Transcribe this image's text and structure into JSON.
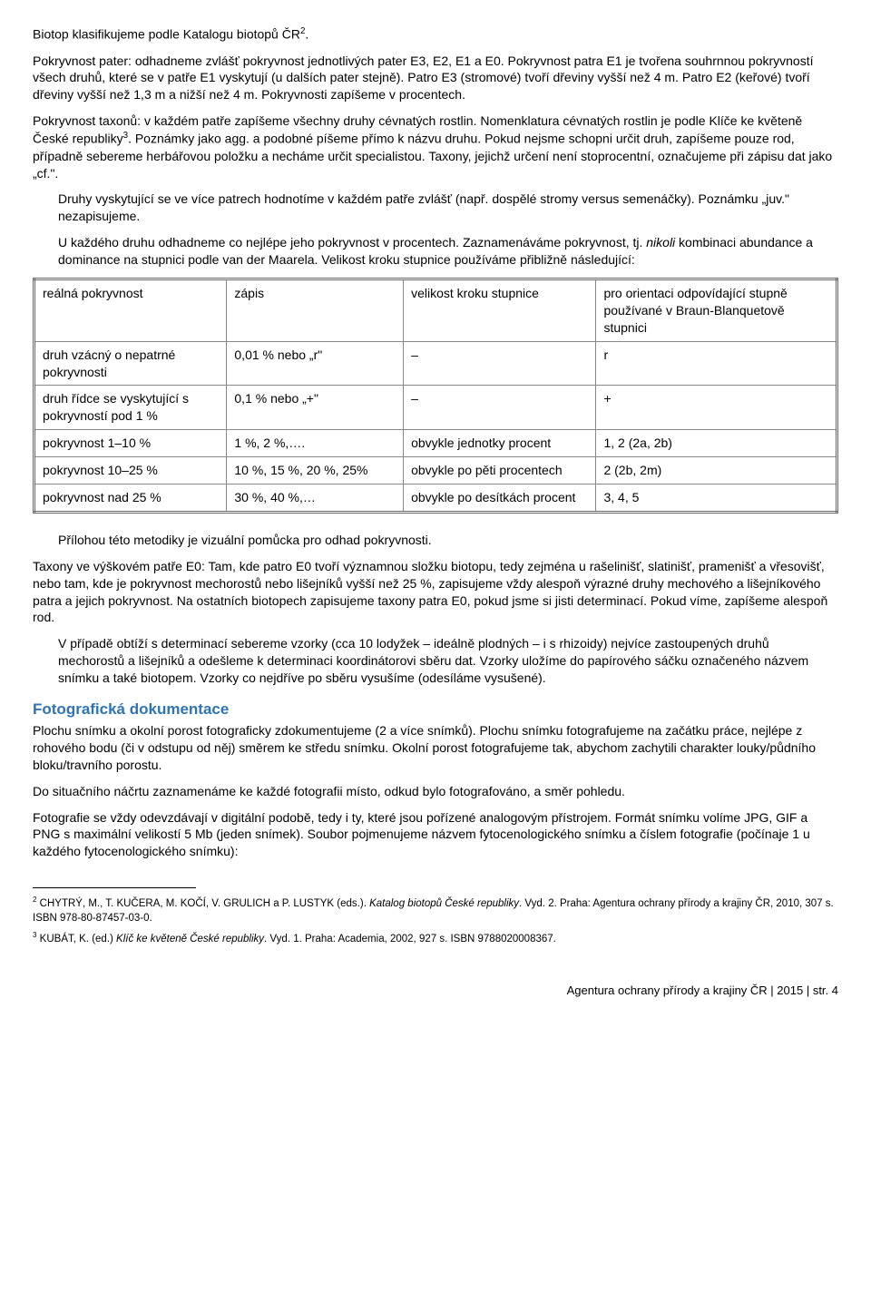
{
  "para1_a": "Biotop klasifikujeme podle Katalogu biotopů ČR",
  "para1_sup": "2",
  "para1_b": ".",
  "para2": "Pokryvnost pater: odhadneme zvlášť pokryvnost jednotlivých pater E3, E2, E1 a E0. Pokryvnost patra E1 je tvořena souhrnnou pokryvností všech druhů, které se v patře E1 vyskytují (u dalších pater stejně). Patro E3 (stromové) tvoří dřeviny vyšší než 4 m. Patro E2 (keřové) tvoří dřeviny vyšší než 1,3 m a nižší než 4 m. Pokryvnosti zapíšeme v procentech.",
  "para3_a": "Pokryvnost taxonů: v každém patře zapíšeme všechny druhy cévnatých rostlin. Nomenklatura cévnatých rostlin je podle Klíče ke květeně České republiky",
  "para3_sup": "3",
  "para3_b": ". Poznámky jako agg. a podobné píšeme přímo k názvu druhu. Pokud nejsme schopni určit druh, zapíšeme pouze rod, případně sebereme herbářovou položku a necháme určit specialistou. Taxony, jejichž určení není stoprocentní, označujeme při zápisu dat jako „cf.\".",
  "para4": "Druhy vyskytující se ve více patrech hodnotíme v každém patře zvlášť (např. dospělé stromy versus semenáčky). Poznámku „juv.\" nezapisujeme.",
  "para5_a": "U každého druhu odhadneme co nejlépe jeho pokryvnost v procentech. Zaznamenáváme pokryvnost, tj. ",
  "para5_it": "nikoli",
  "para5_b": " kombinaci abundance a dominance na stupnici podle van der Maarela. Velikost kroku stupnice používáme přibližně následující:",
  "table": {
    "headers": [
      "reálná pokryvnost",
      "zápis",
      "velikost kroku stupnice",
      "pro orientaci odpovídající stupně používané v Braun-Blanquetově stupnici"
    ],
    "rows": [
      [
        "druh vzácný o nepatrné pokryvnosti",
        "0,01 % nebo „r\"",
        "–",
        "r"
      ],
      [
        "druh řídce se vyskytující s pokryvností pod 1 %",
        "0,1 % nebo „+\"",
        "–",
        "+"
      ],
      [
        "pokryvnost 1–10 %",
        "1 %, 2 %,….",
        "obvykle jednotky procent",
        "1, 2 (2a, 2b)"
      ],
      [
        "pokryvnost 10–25 %",
        "10 %, 15 %, 20 %, 25%",
        "obvykle po pěti procentech",
        "2 (2b, 2m)"
      ],
      [
        "pokryvnost nad 25 %",
        "30 %, 40 %,…",
        "obvykle po desítkách procent",
        "3, 4, 5"
      ]
    ],
    "col_widths": [
      "24%",
      "22%",
      "24%",
      "30%"
    ]
  },
  "para6": "Přílohou této metodiky je vizuální pomůcka pro odhad pokryvnosti.",
  "para7": "Taxony ve výškovém patře E0: Tam, kde patro E0 tvoří významnou složku biotopu, tedy zejména u rašelinišť, slatinišť, pramenišť a vřesovišť, nebo tam, kde je pokryvnost mechorostů nebo lišejníků vyšší než 25 %, zapisujeme vždy alespoň výrazné druhy mechového a lišejníkového patra a jejich pokryvnost. Na ostatních biotopech zapisujeme taxony patra E0, pokud jsme si jisti determinací. Pokud víme, zapíšeme alespoň rod.",
  "para8": "V případě obtíží s determinací sebereme vzorky (cca 10 lodyžek – ideálně plodných – i s rhizoidy) nejvíce zastoupených druhů mechorostů a lišejníků a odešleme k determinaci koordinátorovi sběru dat. Vzorky uložíme do papírového sáčku označeného názvem snímku a také biotopem. Vzorky co nejdříve po sběru vysušíme (odesíláme vysušené).",
  "heading1": "Fotografická dokumentace",
  "para9": "Plochu snímku a okolní porost fotograficky zdokumentujeme (2 a více snímků). Plochu snímku fotografujeme na začátku práce, nejlépe z rohového bodu (či v odstupu od něj) směrem ke středu snímku. Okolní porost fotografujeme tak, abychom zachytili charakter louky/půdního bloku/travního porostu.",
  "para10": "Do situačního náčrtu zaznamenáme ke každé fotografii místo, odkud bylo fotografováno, a směr pohledu.",
  "para11": "Fotografie se vždy odevzdávají v digitální podobě, tedy i ty, které jsou pořízené analogovým přístrojem. Formát snímku volíme JPG, GIF a PNG s maximální velikostí 5 Mb (jeden snímek). Soubor pojmenujeme názvem fytocenologického snímku a číslem fotografie (počínaje 1 u každého fytocenologického snímku):",
  "fn2_sup": "2",
  "fn2_a": " CHYTRÝ, M., T. KUČERA, M. KOČÍ, V. GRULICH a P. LUSTYK (eds.). ",
  "fn2_it": "Katalog biotopů České republiky",
  "fn2_b": ". Vyd. 2. Praha: Agentura ochrany přírody a krajiny ČR, 2010, 307 s. ISBN 978-80-87457-03-0.",
  "fn3_sup": "3",
  "fn3_a": " KUBÁT, K. (ed.) ",
  "fn3_it": "Klíč ke květeně České republiky",
  "fn3_b": ". Vyd. 1. Praha: Academia, 2002, 927 s. ISBN 9788020008367.",
  "footer": "Agentura ochrany přírody a krajiny ČR | 2015 | str. 4"
}
